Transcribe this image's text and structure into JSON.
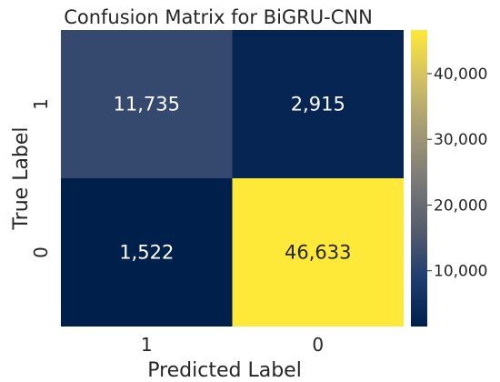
{
  "chart_data": {
    "type": "heatmap",
    "title": "Confusion Matrix for BiGRU-CNN",
    "xlabel": "Predicted Label",
    "ylabel": "True Label",
    "x_tick_labels": [
      "1",
      "0"
    ],
    "y_tick_labels": [
      "1",
      "0"
    ],
    "matrix": [
      [
        11735,
        2915
      ],
      [
        1522,
        46633
      ]
    ],
    "cell_labels": [
      [
        "11,735",
        "2,915"
      ],
      [
        "1,522",
        "46,633"
      ]
    ],
    "colormap": "cividis",
    "value_range": [
      1522,
      46633
    ],
    "colorbar_ticks": [
      10000,
      20000,
      30000,
      40000
    ],
    "colorbar_tick_labels": [
      "10,000",
      "20,000",
      "30,000",
      "40,000"
    ],
    "colors": {
      "low": "#00204c",
      "high": "#fee838"
    }
  }
}
